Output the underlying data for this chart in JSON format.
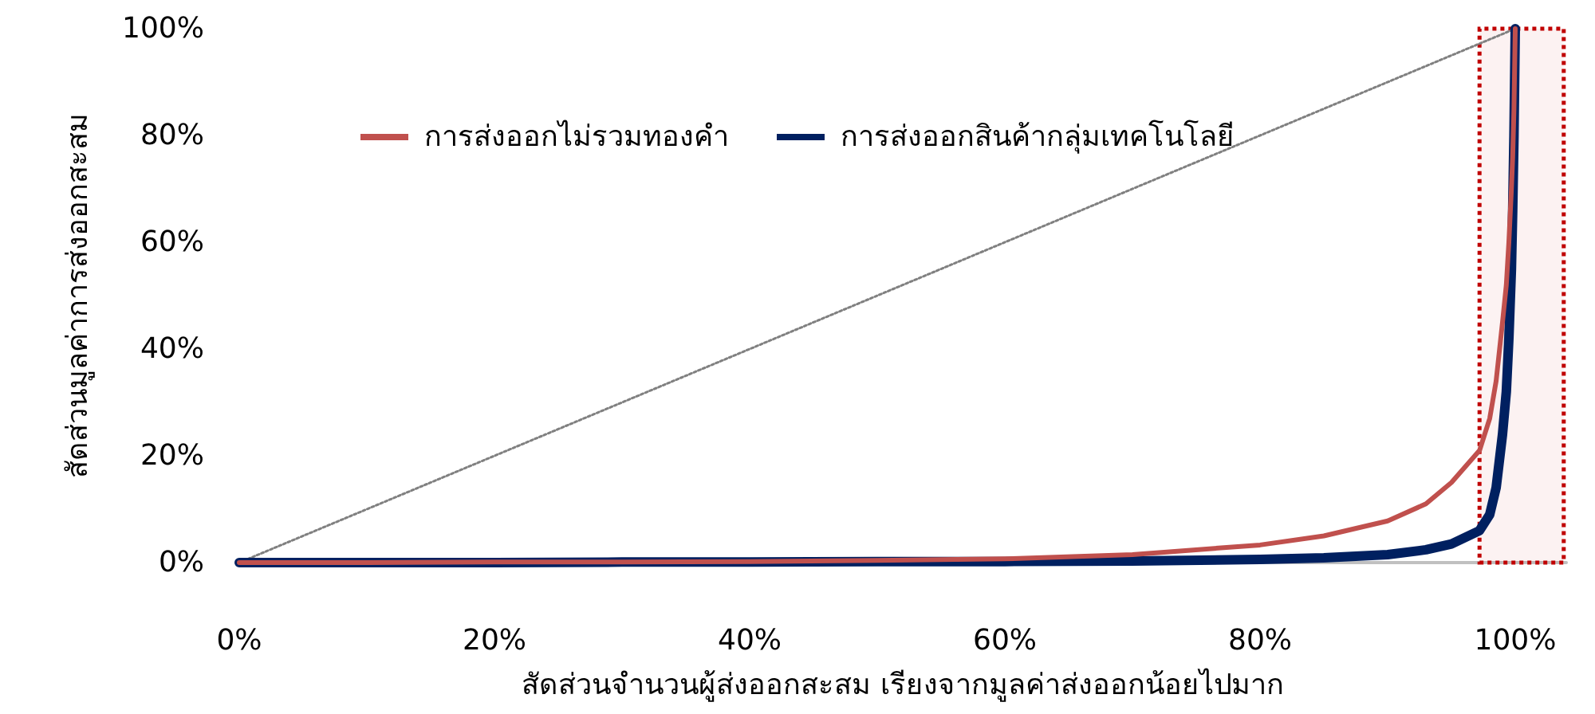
{
  "chart_data": {
    "type": "line",
    "xlabel": "สัดส่วนจำนวนผู้ส่งออกสะสม เรียงจากมูลค่าส่งออกน้อยไปมาก",
    "ylabel": "สัดส่วนมูลค่าการส่งออกสะสม",
    "x": [
      0,
      10,
      20,
      30,
      40,
      50,
      60,
      70,
      80,
      85,
      90,
      93,
      95,
      97.2,
      98,
      98.5,
      99,
      99.3,
      99.5,
      99.7,
      99.8,
      99.9,
      100
    ],
    "series": [
      {
        "name": "การส่งออกไม่รวมทองคำ",
        "color": "#c0504d",
        "values": [
          0,
          0,
          0.1,
          0.1,
          0.2,
          0.4,
          0.7,
          1.5,
          3.3,
          5,
          7.8,
          11,
          15,
          21,
          27,
          34,
          45,
          52,
          60,
          70,
          76,
          85,
          100
        ]
      },
      {
        "name": "การส่งออกสินค้ากลุ่มเทคโนโลยี",
        "color": "#002060",
        "values": [
          0,
          0,
          0,
          0.1,
          0.1,
          0.2,
          0.2,
          0.3,
          0.6,
          0.9,
          1.5,
          2.4,
          3.5,
          6,
          9,
          14,
          24,
          32,
          42,
          55,
          66,
          80,
          100
        ]
      },
      {
        "x": [
          0,
          100
        ],
        "values": [
          0,
          100
        ],
        "color": "#808080",
        "line_style": "dotted"
      }
    ],
    "bands": [
      {
        "axis": "x",
        "from": 97.2,
        "to": 103.8,
        "color": "#c00000"
      }
    ],
    "xlim": [
      0,
      104
    ],
    "xticks": [
      {
        "value": 0,
        "label": "0%"
      },
      {
        "value": 20,
        "label": "20%"
      },
      {
        "value": 40,
        "label": "40%"
      },
      {
        "value": 60,
        "label": "60%"
      },
      {
        "value": 80,
        "label": "80%"
      },
      {
        "value": 100,
        "label": "100%"
      }
    ],
    "ylim": [
      0,
      100
    ],
    "yticks": [
      {
        "value": 0,
        "label": "0%"
      },
      {
        "value": 20,
        "label": "20%"
      },
      {
        "value": 40,
        "label": "40%"
      },
      {
        "value": 60,
        "label": "60%"
      },
      {
        "value": 80,
        "label": "80%"
      },
      {
        "value": 100,
        "label": "100%"
      }
    ],
    "grid": false,
    "legend": "top",
    "marker": "none"
  }
}
